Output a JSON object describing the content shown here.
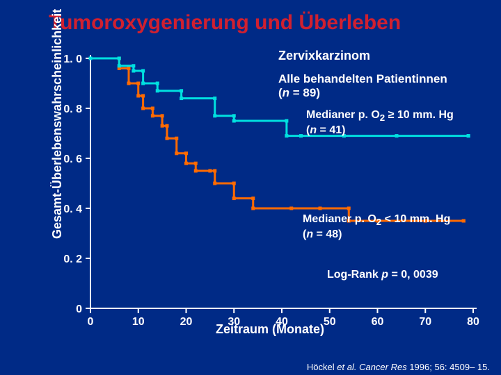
{
  "title": "Tumoroxygenierung und Überleben",
  "chart": {
    "type": "step-line",
    "ylabel": "Gesamt-Überlebenswahrscheinlichkeit",
    "xlabel": "Zeitraum (Monate)",
    "background_color": "#002a86",
    "axis_color": "#ffffff",
    "xlim": [
      0,
      80
    ],
    "xtick_step": 10,
    "ylim": [
      0,
      1.0
    ],
    "yticks": [
      0,
      0.2,
      0.4,
      0.6,
      0.8,
      1.0
    ],
    "ytick_labels": [
      "0",
      "0. 2",
      "0. 4",
      "0. 6",
      "0. 8",
      "1. 0"
    ],
    "xtick_labels": [
      "0",
      "10",
      "20",
      "30",
      "40",
      "50",
      "60",
      "70",
      "80"
    ],
    "series": {
      "high": {
        "label": "Medianer p. O₂ ≥ 10 mm. Hg (n = 41)",
        "color": "#00e0e0",
        "line_width": 3,
        "marker_size": 5,
        "points": [
          [
            0,
            1.0
          ],
          [
            6,
            1.0
          ],
          [
            6,
            0.97
          ],
          [
            9,
            0.97
          ],
          [
            9,
            0.95
          ],
          [
            11,
            0.95
          ],
          [
            11,
            0.9
          ],
          [
            14,
            0.9
          ],
          [
            14,
            0.87
          ],
          [
            19,
            0.87
          ],
          [
            19,
            0.84
          ],
          [
            26,
            0.84
          ],
          [
            26,
            0.77
          ],
          [
            30,
            0.77
          ],
          [
            30,
            0.75
          ],
          [
            41,
            0.75
          ],
          [
            41,
            0.69
          ],
          [
            79,
            0.69
          ]
        ],
        "censor_marks": [
          [
            44,
            0.69
          ],
          [
            53,
            0.69
          ],
          [
            64,
            0.69
          ],
          [
            79,
            0.69
          ]
        ]
      },
      "low": {
        "label": "Medianer p. O₂ < 10 mm. Hg (n = 48)",
        "color": "#ff6a00",
        "line_width": 3,
        "marker_size": 5,
        "points": [
          [
            0,
            1.0
          ],
          [
            6,
            1.0
          ],
          [
            6,
            0.96
          ],
          [
            8,
            0.96
          ],
          [
            8,
            0.9
          ],
          [
            10,
            0.9
          ],
          [
            10,
            0.85
          ],
          [
            11,
            0.85
          ],
          [
            11,
            0.8
          ],
          [
            13,
            0.8
          ],
          [
            13,
            0.77
          ],
          [
            15,
            0.77
          ],
          [
            15,
            0.73
          ],
          [
            16,
            0.73
          ],
          [
            16,
            0.68
          ],
          [
            18,
            0.68
          ],
          [
            18,
            0.62
          ],
          [
            20,
            0.62
          ],
          [
            20,
            0.58
          ],
          [
            22,
            0.58
          ],
          [
            22,
            0.55
          ],
          [
            26,
            0.55
          ],
          [
            26,
            0.5
          ],
          [
            30,
            0.5
          ],
          [
            30,
            0.44
          ],
          [
            34,
            0.44
          ],
          [
            34,
            0.4
          ],
          [
            54,
            0.4
          ],
          [
            54,
            0.35
          ],
          [
            78,
            0.35
          ]
        ],
        "censor_marks": [
          [
            25,
            0.55
          ],
          [
            42,
            0.4
          ],
          [
            48,
            0.4
          ],
          [
            60,
            0.35
          ],
          [
            70,
            0.35
          ],
          [
            78,
            0.35
          ]
        ]
      }
    },
    "annotations": {
      "heading": "Zervixkarzinom",
      "all_patients_a": "Alle behandelten Patientinnen",
      "all_patients_b": "(n = 89)",
      "high_label_a": "Medianer p. O",
      "high_label_sub": "2",
      "high_label_b": " ≥ 10 mm. Hg",
      "high_label_c": "(n = 41)",
      "low_label_a": "Medianer p. O",
      "low_label_sub": "2",
      "low_label_b": " < 10 mm. Hg",
      "low_label_c": "(n = 48)",
      "logrank": "Log-Rank p = 0, 0039"
    }
  },
  "citation_a": "Höckel ",
  "citation_b": "et al. Cancer Res ",
  "citation_c": "1996; 56: 4509– 15."
}
